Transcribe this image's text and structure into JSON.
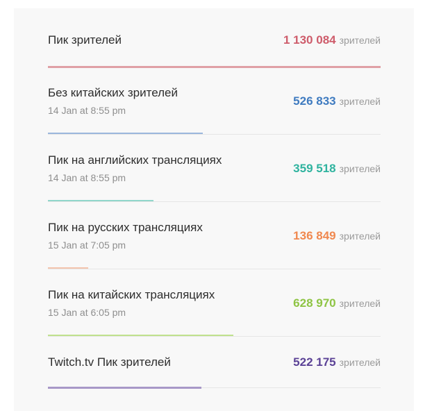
{
  "unit_label": "зрителей",
  "stats": [
    {
      "name": "Пик зрителей",
      "date": "",
      "value": "1 130 084",
      "fraction": 1.0,
      "color": "#ce5c6b",
      "bar_color": "#e0a0a6"
    },
    {
      "name": "Без китайских зрителей",
      "date": "14 Jan at 8:55 pm",
      "value": "526 833",
      "fraction": 0.466,
      "color": "#3f7bc0",
      "bar_color": "#9bb7dd"
    },
    {
      "name": "Пик на английских трансляциях",
      "date": "14 Jan at 8:55 pm",
      "value": "359 518",
      "fraction": 0.318,
      "color": "#2fb39f",
      "bar_color": "#91d6cb"
    },
    {
      "name": "Пик на русских трансляциях",
      "date": "15 Jan at 7:05 pm",
      "value": "136 849",
      "fraction": 0.121,
      "color": "#f0884f",
      "bar_color": "#f3c4ad"
    },
    {
      "name": "Пик на китайских трансляциях",
      "date": "15 Jan at 6:05 pm",
      "value": "628 970",
      "fraction": 0.557,
      "color": "#8ec444",
      "bar_color": "#bfe18d"
    },
    {
      "name": "Twitch.tv Пик зрителей",
      "date": "",
      "value": "522 175",
      "fraction": 0.462,
      "color": "#5b4296",
      "bar_color": "#a898c8"
    }
  ]
}
